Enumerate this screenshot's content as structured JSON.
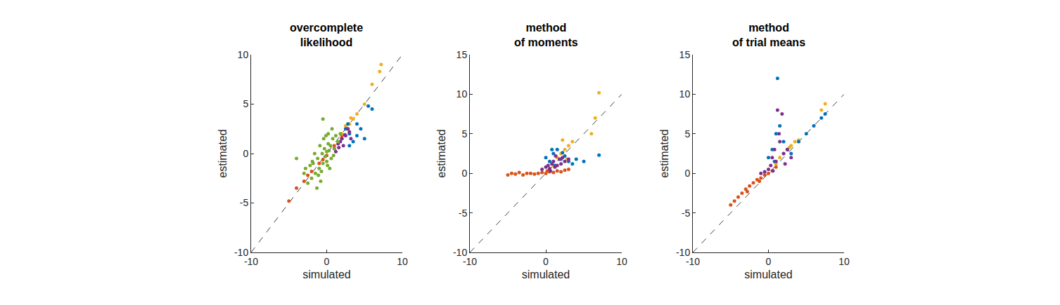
{
  "chart_data": [
    {
      "type": "scatter",
      "title": "overcomplete\nlikelihood",
      "x_label": "simulated",
      "y_label": "estimated",
      "xlim": [
        -10,
        10
      ],
      "ylim": [
        -10,
        10
      ],
      "xticks": [
        -10,
        0,
        10
      ],
      "yticks": [
        -10,
        -5,
        0,
        5,
        10
      ],
      "grid": false,
      "series": [
        {
          "type": "line",
          "line_style": "dashed",
          "color": "#404040",
          "x": [
            -10,
            10
          ],
          "values": [
            -10,
            10
          ]
        },
        {
          "color": "#D95319",
          "x": [
            -5,
            -4,
            -3,
            -2,
            -1,
            0,
            1,
            2,
            -2.5,
            -0.5
          ],
          "values": [
            -4.8,
            -3.5,
            -2.8,
            -1.8,
            -1,
            -0.2,
            0.8,
            1.8,
            -2.2,
            -0.6
          ]
        },
        {
          "color": "#EDB120",
          "x": [
            2,
            2.5,
            3,
            3.5,
            4,
            5,
            6,
            7,
            7.2,
            2.8,
            3.2
          ],
          "values": [
            2,
            2.8,
            3,
            3.5,
            4,
            5,
            7,
            8.3,
            9,
            2.5,
            3.6
          ]
        },
        {
          "color": "#0072BD",
          "x": [
            2,
            3,
            4,
            5,
            6,
            2.5,
            3.5,
            4.5,
            5.5,
            3,
            4,
            2.8
          ],
          "values": [
            1.5,
            2,
            3,
            1.5,
            4.5,
            2.5,
            1.2,
            2.5,
            4.8,
            0.8,
            1.8,
            3
          ]
        },
        {
          "color": "#7E2F8E",
          "x": [
            1,
            1.5,
            2,
            2.5,
            3,
            1.2,
            1.8,
            2.2,
            2.8,
            3.2,
            1.6,
            2.4
          ],
          "values": [
            0.5,
            1,
            1.5,
            1.8,
            2.2,
            0.2,
            1.2,
            0.8,
            2.5,
            1.5,
            0.6,
            1.9
          ]
        },
        {
          "color": "#77AC30",
          "x": [
            -2.5,
            -2,
            -1.8,
            -1.5,
            -1.2,
            -1,
            -0.8,
            -0.6,
            -0.5,
            -0.3,
            -0.2,
            0,
            0.1,
            0.2,
            0.3,
            0.5,
            0.6,
            0.8,
            1,
            1.2,
            1.5,
            -1.6,
            -1.1,
            -0.7,
            -0.4,
            0,
            0.4,
            0.7,
            -3,
            -2.2,
            -1.3,
            -0.9,
            -0.1,
            0.9,
            1.8,
            -0.5,
            0.2,
            -1.9,
            -4,
            -2.8
          ],
          "values": [
            -3,
            -2.5,
            -1,
            -2,
            -0.5,
            -1.5,
            -2.8,
            0,
            -1,
            0.5,
            -0.3,
            0.2,
            -1.2,
            1,
            0.3,
            0.8,
            -0.5,
            1.5,
            0.5,
            1.8,
            1.2,
            0,
            -2.2,
            -1.8,
            1.5,
            -0.8,
            -1.5,
            2.5,
            -2,
            -1.2,
            -3.5,
            0.8,
            1.8,
            -0.2,
            2,
            3.5,
            2,
            -0.8,
            -0.5,
            -1.5
          ]
        }
      ]
    },
    {
      "type": "scatter",
      "title": "method\nof moments",
      "x_label": "simulated",
      "y_label": "estimated",
      "xlim": [
        -10,
        10
      ],
      "ylim": [
        -10,
        15
      ],
      "xticks": [
        -10,
        0,
        10
      ],
      "yticks": [
        -10,
        -5,
        0,
        5,
        10,
        15
      ],
      "grid": false,
      "series": [
        {
          "type": "line",
          "line_style": "dashed",
          "color": "#404040",
          "x": [
            -10,
            10
          ],
          "values": [
            -10,
            10
          ]
        },
        {
          "color": "#D95319",
          "x": [
            -5,
            -4.5,
            -4,
            -3,
            -2.5,
            -2,
            -1.5,
            -1,
            -0.5,
            0,
            0.5,
            1,
            1.5,
            2,
            2.5,
            3,
            -3.5,
            0.2
          ],
          "values": [
            -0.2,
            0,
            -0.1,
            -0.2,
            0,
            0,
            -0.1,
            0,
            0.1,
            0,
            0.2,
            0.1,
            0.3,
            0.2,
            0.4,
            0.5,
            0.1,
            0.3
          ]
        },
        {
          "color": "#EDB120",
          "x": [
            1,
            1.5,
            2,
            2.5,
            3,
            3.5,
            6,
            6.5,
            7,
            2.2,
            2.8
          ],
          "values": [
            1,
            2,
            2.5,
            3,
            3.5,
            4,
            5,
            7,
            10.2,
            4.2,
            1.8
          ]
        },
        {
          "color": "#0072BD",
          "x": [
            0,
            0.5,
            1,
            1.5,
            2,
            2.5,
            3,
            4,
            5,
            7,
            0.8,
            1.2,
            2.2,
            3.5
          ],
          "values": [
            2,
            1.5,
            2.5,
            3,
            1.8,
            2.2,
            1.5,
            1.8,
            1.5,
            2.3,
            3,
            1,
            2.6,
            1.2
          ]
        },
        {
          "color": "#7E2F8E",
          "x": [
            -0.5,
            0,
            0.3,
            0.5,
            0.8,
            1,
            1.2,
            1.5,
            1.8,
            2,
            2.2,
            2.5,
            3,
            0.6,
            1.3
          ],
          "values": [
            0.5,
            0.8,
            1,
            0.6,
            1.2,
            1.5,
            0.8,
            1,
            1.8,
            1.2,
            2,
            1.5,
            1.8,
            0.3,
            2.2
          ]
        }
      ]
    },
    {
      "type": "scatter",
      "title": "method\nof trial means",
      "x_label": "simulated",
      "y_label": "estimated",
      "xlim": [
        -10,
        10
      ],
      "ylim": [
        -10,
        15
      ],
      "xticks": [
        -10,
        0,
        10
      ],
      "yticks": [
        -10,
        -5,
        0,
        5,
        10,
        15
      ],
      "grid": false,
      "series": [
        {
          "type": "line",
          "line_style": "dashed",
          "color": "#404040",
          "x": [
            -10,
            10
          ],
          "values": [
            -10,
            10
          ]
        },
        {
          "color": "#D95319",
          "x": [
            -5,
            -4.5,
            -4,
            -3.5,
            -3,
            -2.5,
            -2,
            -1.5,
            -1,
            -0.5,
            0,
            0.5,
            1,
            -2.8,
            -1.2
          ],
          "values": [
            -4,
            -3.5,
            -3,
            -2.5,
            -2,
            -1.6,
            -1.2,
            -0.8,
            -0.6,
            -0.2,
            0,
            0.3,
            0.8,
            -2.3,
            -1
          ]
        },
        {
          "color": "#EDB120",
          "x": [
            1,
            1.5,
            2,
            2.5,
            3,
            3.5,
            4,
            7,
            7.5,
            2.8
          ],
          "values": [
            1.2,
            2,
            2.5,
            3,
            3.5,
            4,
            4.2,
            8,
            8.8,
            3.3
          ]
        },
        {
          "color": "#0072BD",
          "x": [
            0,
            0.5,
            1,
            1.2,
            1.5,
            2,
            2.5,
            3,
            4,
            5,
            6,
            7,
            7.5,
            0.8
          ],
          "values": [
            2,
            3,
            5,
            12,
            6,
            4,
            3,
            2.5,
            4,
            5,
            6,
            7,
            7.5,
            1.5
          ]
        },
        {
          "color": "#7E2F8E",
          "x": [
            -1,
            -0.5,
            0,
            0.3,
            0.5,
            0.8,
            1,
            1.2,
            1.5,
            1.8,
            2,
            2.5,
            3,
            0.6,
            1.4,
            2.2
          ],
          "values": [
            0,
            0.2,
            0.5,
            1,
            2,
            3,
            1.5,
            8,
            4,
            7.5,
            2.5,
            3,
            2,
            0.3,
            5,
            1.2
          ]
        }
      ]
    }
  ]
}
